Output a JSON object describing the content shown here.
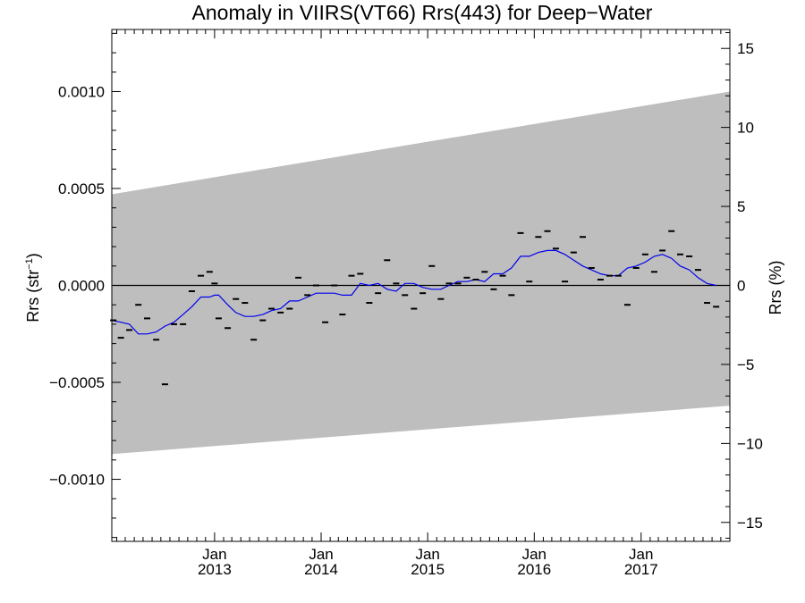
{
  "chart_data": {
    "type": "scatter",
    "title": "Anomaly in VIIRS(VT66) Rrs(443) for Deep−Water",
    "ylabel_main": "Rrs (str",
    "ylabel_sup": "−1",
    "ylabel_close": ")",
    "ylabel_right": "Rrs (%)",
    "xlim": [
      "2012-01-15",
      "2017-11-01"
    ],
    "ylim": [
      -0.00132,
      0.00132
    ],
    "y2lim": [
      -16.2,
      16.2
    ],
    "y_ticks": [
      {
        "v": 0.001,
        "label": "0.0010"
      },
      {
        "v": 0.0005,
        "label": "0.0005"
      },
      {
        "v": 0.0,
        "label": "0.0000"
      },
      {
        "v": -0.0005,
        "label": "−0.0005"
      },
      {
        "v": -0.001,
        "label": "−0.0010"
      }
    ],
    "y2_ticks": [
      {
        "v": 15,
        "label": "15"
      },
      {
        "v": 10,
        "label": "10"
      },
      {
        "v": 5,
        "label": "5"
      },
      {
        "v": 0,
        "label": "0"
      },
      {
        "v": -5,
        "label": "−5"
      },
      {
        "v": -10,
        "label": "−10"
      },
      {
        "v": -15,
        "label": "−15"
      }
    ],
    "x_ticks": [
      {
        "date": "2013-01-01",
        "month": "Jan",
        "year": "2013"
      },
      {
        "date": "2014-01-01",
        "month": "Jan",
        "year": "2014"
      },
      {
        "date": "2015-01-01",
        "month": "Jan",
        "year": "2015"
      },
      {
        "date": "2016-01-01",
        "month": "Jan",
        "year": "2016"
      },
      {
        "date": "2017-01-01",
        "month": "Jan",
        "year": "2017"
      }
    ],
    "uncertainty_band": {
      "x": [
        "2012-01-15",
        "2017-11-01"
      ],
      "upper": [
        0.00047,
        0.001
      ],
      "lower": [
        -0.00087,
        -0.00062
      ],
      "color": "#bebebe"
    },
    "zero_line": 0.0,
    "series": [
      {
        "kind": "monthly_anomaly",
        "marker": "dash",
        "color": "#000000",
        "points": [
          [
            "2012-01-20",
            -0.00018
          ],
          [
            "2012-02-15",
            -0.00027
          ],
          [
            "2012-03-15",
            -0.00023
          ],
          [
            "2012-04-15",
            -0.0001
          ],
          [
            "2012-05-15",
            -0.00017
          ],
          [
            "2012-06-15",
            -0.00028
          ],
          [
            "2012-07-15",
            -0.00051
          ],
          [
            "2012-08-15",
            -0.0002
          ],
          [
            "2012-09-15",
            -0.0002
          ],
          [
            "2012-10-15",
            -3e-05
          ],
          [
            "2012-11-15",
            5e-05
          ],
          [
            "2012-12-15",
            7e-05
          ],
          [
            "2013-01-01",
            1e-05
          ],
          [
            "2013-01-15",
            -0.00017
          ],
          [
            "2013-02-15",
            -0.00022
          ],
          [
            "2013-03-15",
            -7e-05
          ],
          [
            "2013-04-15",
            -9e-05
          ],
          [
            "2013-05-15",
            -0.00028
          ],
          [
            "2013-06-15",
            -0.00018
          ],
          [
            "2013-07-15",
            -0.00012
          ],
          [
            "2013-08-15",
            -0.00014
          ],
          [
            "2013-09-15",
            -0.00012
          ],
          [
            "2013-10-15",
            4e-05
          ],
          [
            "2013-11-15",
            -5e-05
          ],
          [
            "2013-12-15",
            0.0
          ],
          [
            "2014-01-15",
            -0.00019
          ],
          [
            "2014-02-15",
            0.0
          ],
          [
            "2014-03-15",
            -0.00015
          ],
          [
            "2014-04-15",
            5e-05
          ],
          [
            "2014-05-15",
            6e-05
          ],
          [
            "2014-06-15",
            -9e-05
          ],
          [
            "2014-07-15",
            -4e-05
          ],
          [
            "2014-08-15",
            0.00013
          ],
          [
            "2014-09-15",
            1e-05
          ],
          [
            "2014-10-15",
            -5e-05
          ],
          [
            "2014-11-15",
            -0.00012
          ],
          [
            "2014-12-15",
            -4e-05
          ],
          [
            "2015-01-15",
            0.0001
          ],
          [
            "2015-02-15",
            -7e-05
          ],
          [
            "2015-03-15",
            1e-05
          ],
          [
            "2015-04-15",
            1e-05
          ],
          [
            "2015-05-15",
            4e-05
          ],
          [
            "2015-06-15",
            3e-05
          ],
          [
            "2015-07-15",
            7e-05
          ],
          [
            "2015-08-15",
            -2e-05
          ],
          [
            "2015-09-15",
            5e-05
          ],
          [
            "2015-10-15",
            -5e-05
          ],
          [
            "2015-11-15",
            0.00027
          ],
          [
            "2015-12-15",
            2e-05
          ],
          [
            "2016-01-15",
            0.00025
          ],
          [
            "2016-02-15",
            0.00028
          ],
          [
            "2016-03-15",
            0.00019
          ],
          [
            "2016-04-15",
            2e-05
          ],
          [
            "2016-05-15",
            0.00017
          ],
          [
            "2016-06-15",
            0.00025
          ],
          [
            "2016-07-15",
            9e-05
          ],
          [
            "2016-08-15",
            3e-05
          ],
          [
            "2016-09-15",
            5e-05
          ],
          [
            "2016-10-15",
            5e-05
          ],
          [
            "2016-11-15",
            -0.0001
          ],
          [
            "2016-12-15",
            9e-05
          ],
          [
            "2017-01-15",
            0.00016
          ],
          [
            "2017-02-15",
            7e-05
          ],
          [
            "2017-03-15",
            0.00018
          ],
          [
            "2017-04-15",
            0.00028
          ],
          [
            "2017-05-15",
            0.00016
          ],
          [
            "2017-06-15",
            0.00015
          ],
          [
            "2017-07-15",
            8e-05
          ],
          [
            "2017-08-15",
            -9e-05
          ],
          [
            "2017-09-15",
            -0.00011
          ]
        ]
      },
      {
        "kind": "running_mean",
        "marker": "line",
        "color": "#0000ee",
        "points": [
          [
            "2012-01-15",
            -0.00018
          ],
          [
            "2012-02-15",
            -0.00019
          ],
          [
            "2012-03-15",
            -0.0002
          ],
          [
            "2012-04-15",
            -0.00025
          ],
          [
            "2012-05-15",
            -0.00025
          ],
          [
            "2012-06-15",
            -0.00024
          ],
          [
            "2012-07-15",
            -0.00021
          ],
          [
            "2012-08-15",
            -0.00019
          ],
          [
            "2012-09-15",
            -0.00015
          ],
          [
            "2012-10-15",
            -0.00011
          ],
          [
            "2012-11-15",
            -6e-05
          ],
          [
            "2012-12-15",
            -6e-05
          ],
          [
            "2013-01-01",
            -5e-05
          ],
          [
            "2013-01-15",
            -5e-05
          ],
          [
            "2013-02-15",
            -0.0001
          ],
          [
            "2013-03-15",
            -0.00014
          ],
          [
            "2013-04-15",
            -0.00016
          ],
          [
            "2013-05-15",
            -0.00016
          ],
          [
            "2013-06-15",
            -0.00015
          ],
          [
            "2013-07-15",
            -0.00013
          ],
          [
            "2013-08-15",
            -0.00012
          ],
          [
            "2013-09-15",
            -8e-05
          ],
          [
            "2013-10-15",
            -8e-05
          ],
          [
            "2013-11-15",
            -6e-05
          ],
          [
            "2013-12-15",
            -4e-05
          ],
          [
            "2014-01-15",
            -4e-05
          ],
          [
            "2014-02-15",
            -4e-05
          ],
          [
            "2014-03-15",
            -5e-05
          ],
          [
            "2014-04-15",
            -5e-05
          ],
          [
            "2014-05-15",
            1e-05
          ],
          [
            "2014-06-15",
            0.0
          ],
          [
            "2014-07-15",
            1e-05
          ],
          [
            "2014-08-15",
            -2e-05
          ],
          [
            "2014-09-15",
            -3e-05
          ],
          [
            "2014-10-15",
            1e-05
          ],
          [
            "2014-11-15",
            1e-05
          ],
          [
            "2014-12-15",
            -1e-05
          ],
          [
            "2015-01-15",
            -2e-05
          ],
          [
            "2015-02-15",
            -2e-05
          ],
          [
            "2015-03-15",
            0.0
          ],
          [
            "2015-04-15",
            2e-05
          ],
          [
            "2015-05-15",
            2e-05
          ],
          [
            "2015-06-15",
            3e-05
          ],
          [
            "2015-07-15",
            2e-05
          ],
          [
            "2015-08-15",
            6e-05
          ],
          [
            "2015-09-15",
            6e-05
          ],
          [
            "2015-10-15",
            9e-05
          ],
          [
            "2015-11-15",
            0.00015
          ],
          [
            "2015-12-15",
            0.00015
          ],
          [
            "2016-01-15",
            0.00017
          ],
          [
            "2016-02-15",
            0.00018
          ],
          [
            "2016-03-15",
            0.00018
          ],
          [
            "2016-04-15",
            0.00016
          ],
          [
            "2016-05-15",
            0.00013
          ],
          [
            "2016-06-15",
            0.0001
          ],
          [
            "2016-07-15",
            8e-05
          ],
          [
            "2016-08-15",
            6e-05
          ],
          [
            "2016-09-15",
            5e-05
          ],
          [
            "2016-10-15",
            5e-05
          ],
          [
            "2016-11-15",
            9e-05
          ],
          [
            "2016-12-15",
            0.0001
          ],
          [
            "2017-01-15",
            0.00012
          ],
          [
            "2017-02-15",
            0.00015
          ],
          [
            "2017-03-15",
            0.00016
          ],
          [
            "2017-04-15",
            0.00014
          ],
          [
            "2017-05-15",
            0.0001
          ],
          [
            "2017-06-15",
            8e-05
          ],
          [
            "2017-07-15",
            4e-05
          ],
          [
            "2017-08-15",
            1e-05
          ],
          [
            "2017-09-15",
            0.0
          ]
        ]
      }
    ]
  }
}
